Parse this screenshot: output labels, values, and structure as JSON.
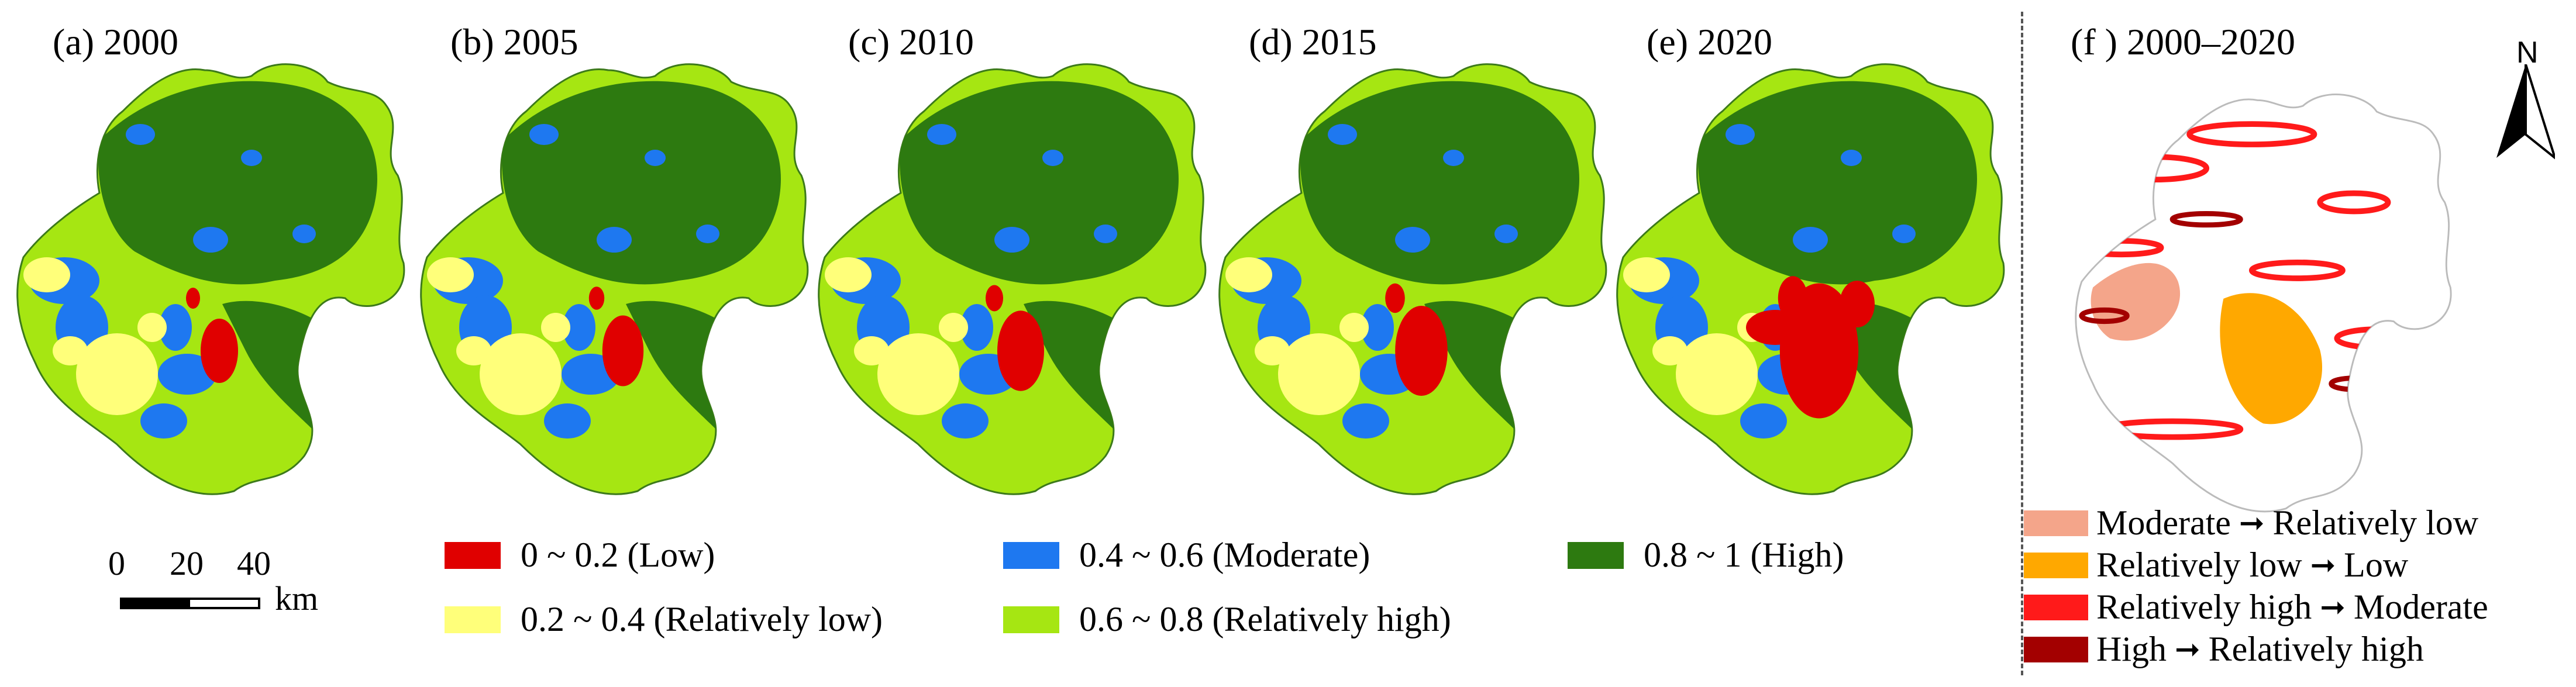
{
  "panels": [
    {
      "label": "(a) 2000",
      "year": 2000
    },
    {
      "label": "(b) 2005",
      "year": 2005
    },
    {
      "label": "(c) 2010",
      "year": 2010
    },
    {
      "label": "(d) 2015",
      "year": 2015
    },
    {
      "label": "(e) 2020",
      "year": 2020
    }
  ],
  "change_panel": {
    "label": "(f ) 2000–2020"
  },
  "legend": [
    {
      "label": "0 ~ 0.2 (Low)",
      "color": "#e00000"
    },
    {
      "label": "0.2 ~ 0.4 (Relatively low)",
      "color": "#ffff7a"
    },
    {
      "label": "0.4 ~ 0.6 (Moderate)",
      "color": "#1e78f0"
    },
    {
      "label": "0.6 ~ 0.8 (Relatively high)",
      "color": "#a6e612"
    },
    {
      "label": "0.8 ~ 1 (High)",
      "color": "#2d7a10"
    }
  ],
  "transitions": [
    {
      "from": "Moderate",
      "to": "Relatively low",
      "color": "#f4a58a"
    },
    {
      "from": "Relatively low",
      "to": "Low",
      "color": "#ffa800"
    },
    {
      "from": "Relatively high",
      "to": "Moderate",
      "color": "#ff1a1a"
    },
    {
      "from": "High",
      "to": "Relatively high",
      "color": "#a30000"
    }
  ],
  "arrow_symbol": "➞",
  "scale_bar": {
    "ticks": [
      "0",
      "20",
      "40"
    ],
    "unit": "km"
  },
  "north_arrow": {
    "letter": "N"
  },
  "icons": {
    "north": "north-arrow-icon",
    "scale": "scale-bar-icon"
  }
}
